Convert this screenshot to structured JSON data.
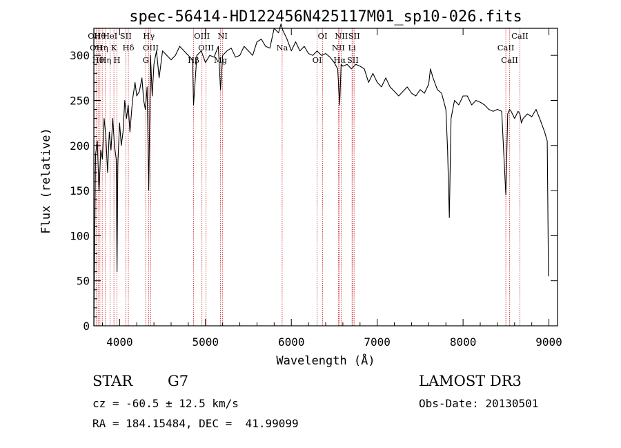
{
  "chart_data": {
    "type": "line",
    "title": "spec-56414-HD122456N425117M01_sp10-026.fits",
    "xlabel": "Wavelength (Å)",
    "ylabel": "Flux (relative)",
    "xlim": [
      3700,
      9100
    ],
    "ylim": [
      0,
      330
    ],
    "xticks": [
      4000,
      5000,
      6000,
      7000,
      8000,
      9000
    ],
    "yticks": [
      0,
      50,
      100,
      150,
      200,
      250,
      300
    ],
    "grid": false,
    "series": [
      {
        "color": "#000000",
        "x": [
          3700,
          3720,
          3740,
          3760,
          3780,
          3800,
          3820,
          3840,
          3860,
          3880,
          3900,
          3920,
          3940,
          3960,
          3970,
          3980,
          4000,
          4020,
          4040,
          4060,
          4080,
          4100,
          4120,
          4150,
          4180,
          4200,
          4230,
          4260,
          4280,
          4300,
          4320,
          4340,
          4360,
          4380,
          4400,
          4430,
          4460,
          4500,
          4550,
          4600,
          4650,
          4700,
          4750,
          4800,
          4850,
          4861,
          4900,
          4950,
          5000,
          5050,
          5100,
          5150,
          5175,
          5200,
          5250,
          5300,
          5350,
          5400,
          5450,
          5500,
          5550,
          5600,
          5650,
          5700,
          5750,
          5800,
          5850,
          5880,
          5900,
          5950,
          6000,
          6050,
          6100,
          6150,
          6200,
          6250,
          6300,
          6350,
          6400,
          6450,
          6500,
          6540,
          6563,
          6580,
          6600,
          6650,
          6700,
          6750,
          6800,
          6850,
          6900,
          6950,
          7000,
          7050,
          7100,
          7150,
          7200,
          7250,
          7300,
          7350,
          7400,
          7450,
          7500,
          7550,
          7600,
          7620,
          7650,
          7700,
          7750,
          7800,
          7820,
          7840,
          7860,
          7900,
          7950,
          8000,
          8050,
          8100,
          8150,
          8200,
          8250,
          8300,
          8350,
          8400,
          8450,
          8498,
          8520,
          8542,
          8560,
          8600,
          8640,
          8662,
          8680,
          8700,
          8750,
          8800,
          8850,
          8900,
          8950,
          8980,
          8995
        ],
        "values": [
          0,
          190,
          205,
          150,
          195,
          185,
          230,
          210,
          170,
          215,
          195,
          230,
          200,
          185,
          60,
          180,
          225,
          200,
          215,
          250,
          230,
          245,
          215,
          250,
          270,
          255,
          260,
          275,
          250,
          240,
          265,
          150,
          300,
          255,
          290,
          305,
          275,
          305,
          300,
          295,
          300,
          310,
          305,
          300,
          295,
          245,
          300,
          305,
          292,
          300,
          298,
          310,
          262,
          300,
          305,
          308,
          298,
          300,
          310,
          305,
          300,
          315,
          318,
          310,
          308,
          330,
          325,
          335,
          328,
          318,
          305,
          315,
          305,
          310,
          302,
          300,
          305,
          300,
          302,
          298,
          292,
          285,
          245,
          290,
          288,
          290,
          285,
          290,
          288,
          285,
          270,
          280,
          270,
          265,
          275,
          265,
          260,
          255,
          260,
          265,
          258,
          255,
          262,
          258,
          268,
          285,
          275,
          262,
          258,
          240,
          195,
          120,
          230,
          250,
          245,
          255,
          255,
          245,
          250,
          248,
          245,
          240,
          238,
          240,
          238,
          145,
          235,
          240,
          238,
          230,
          238,
          235,
          225,
          230,
          235,
          232,
          240,
          228,
          215,
          205,
          55
        ]
      }
    ],
    "line_marks": [
      {
        "x": 3704,
        "label": "OII"
      },
      {
        "x": 3727,
        "label": "OII"
      },
      {
        "x": 3750,
        "label": "Hθ"
      },
      {
        "x": 3771,
        "label": "Hθ"
      },
      {
        "x": 3798,
        "label": "Hη"
      },
      {
        "x": 3835,
        "label": "Hη"
      },
      {
        "x": 3889,
        "label": "HeI"
      },
      {
        "x": 3934,
        "label": "K"
      },
      {
        "x": 3969,
        "label": "H"
      },
      {
        "x": 4072,
        "label": "SII"
      },
      {
        "x": 4102,
        "label": "Hδ"
      },
      {
        "x": 4304,
        "label": "G"
      },
      {
        "x": 4340,
        "label": "Hγ"
      },
      {
        "x": 4363,
        "label": "OIII"
      },
      {
        "x": 4861,
        "label": "Hβ"
      },
      {
        "x": 4959,
        "label": "OIII"
      },
      {
        "x": 5007,
        "label": "OIII"
      },
      {
        "x": 5175,
        "label": "Mg"
      },
      {
        "x": 5200,
        "label": "NI"
      },
      {
        "x": 5893,
        "label": "Na"
      },
      {
        "x": 6300,
        "label": "OI"
      },
      {
        "x": 6364,
        "label": "OI"
      },
      {
        "x": 6548,
        "label": "NII"
      },
      {
        "x": 6563,
        "label": "Hα"
      },
      {
        "x": 6583,
        "label": "NII"
      },
      {
        "x": 6707,
        "label": "Li"
      },
      {
        "x": 6716,
        "label": "SII"
      },
      {
        "x": 6731,
        "label": "SII"
      },
      {
        "x": 8498,
        "label": "CaII"
      },
      {
        "x": 8542,
        "label": "CaII"
      },
      {
        "x": 8662,
        "label": "CaII"
      }
    ]
  },
  "info": {
    "object_type": "STAR",
    "subclass": "G7",
    "survey": "LAMOST DR3",
    "redshift_line": "cz = -60.5 ± 12.5 km/s",
    "obs_date": "Obs-Date: 20130501",
    "coords": "RA = 184.15484, DEC =  41.99099"
  },
  "colors": {
    "spectrum": "#000000",
    "line_markers": "#cc2222",
    "axes": "#000000"
  }
}
